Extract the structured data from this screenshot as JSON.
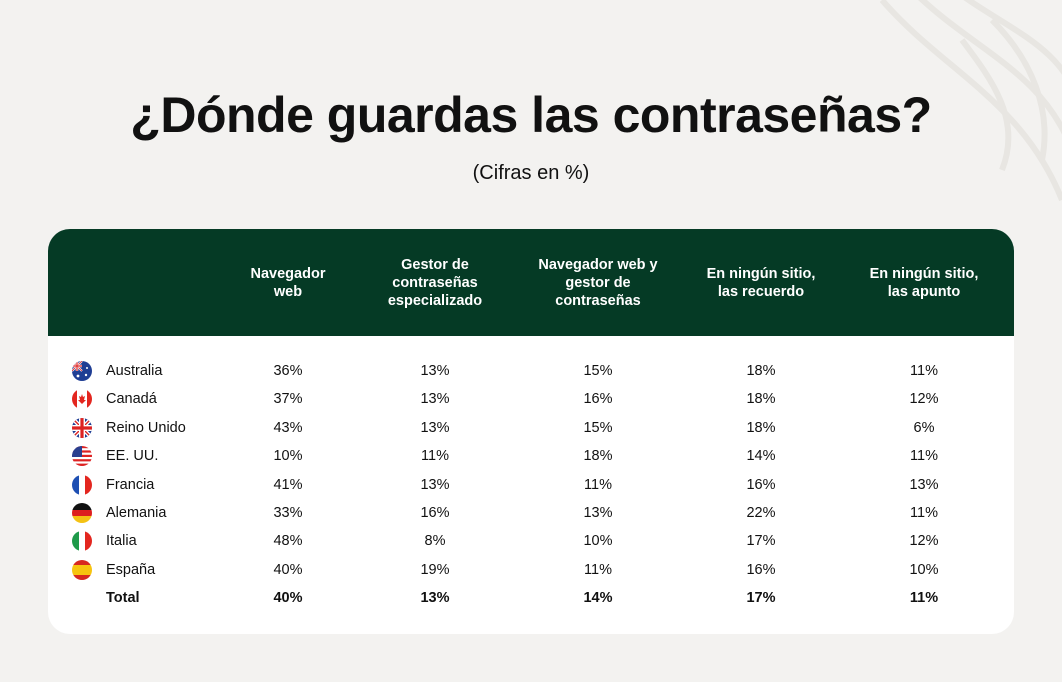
{
  "title": "¿Dónde guardas las contraseñas?",
  "subtitle": "(Cifras en %)",
  "columns": [
    "Navegador\nweb",
    "Gestor de\ncontraseñas\nespecializado",
    "Navegador web y\ngestor de\ncontraseñas",
    "En ningún sitio,\nlas recuerdo",
    "En ningún sitio,\nlas apunto"
  ],
  "rows": [
    {
      "country": "Australia",
      "flag": "australia-flag-icon",
      "values": [
        "36%",
        "13%",
        "15%",
        "18%",
        "11%"
      ]
    },
    {
      "country": "Canadá",
      "flag": "canada-flag-icon",
      "values": [
        "37%",
        "13%",
        "16%",
        "18%",
        "12%"
      ]
    },
    {
      "country": "Reino Unido",
      "flag": "uk-flag-icon",
      "values": [
        "43%",
        "13%",
        "15%",
        "18%",
        "6%"
      ]
    },
    {
      "country": "EE. UU.",
      "flag": "usa-flag-icon",
      "values": [
        "10%",
        "11%",
        "18%",
        "14%",
        "11%"
      ]
    },
    {
      "country": "Francia",
      "flag": "france-flag-icon",
      "values": [
        "41%",
        "13%",
        "11%",
        "16%",
        "13%"
      ]
    },
    {
      "country": "Alemania",
      "flag": "germany-flag-icon",
      "values": [
        "33%",
        "16%",
        "13%",
        "22%",
        "11%"
      ]
    },
    {
      "country": "Italia",
      "flag": "italy-flag-icon",
      "values": [
        "48%",
        "8%",
        "10%",
        "17%",
        "12%"
      ]
    },
    {
      "country": "España",
      "flag": "spain-flag-icon",
      "values": [
        "40%",
        "19%",
        "11%",
        "16%",
        "10%"
      ]
    }
  ],
  "total": {
    "label": "Total",
    "values": [
      "40%",
      "13%",
      "14%",
      "17%",
      "11%"
    ]
  },
  "colors": {
    "header_bg": "#053a25",
    "page_bg": "#f3f2f0",
    "card_bg": "#ffffff"
  },
  "chart_data": {
    "type": "table",
    "title": "¿Dónde guardas las contraseñas?",
    "subtitle": "(Cifras en %)",
    "categories": [
      "Australia",
      "Canadá",
      "Reino Unido",
      "EE. UU.",
      "Francia",
      "Alemania",
      "Italia",
      "España",
      "Total"
    ],
    "series": [
      {
        "name": "Navegador web",
        "values": [
          36,
          37,
          43,
          10,
          41,
          33,
          48,
          40,
          40
        ]
      },
      {
        "name": "Gestor de contraseñas especializado",
        "values": [
          13,
          13,
          13,
          11,
          13,
          16,
          8,
          19,
          13
        ]
      },
      {
        "name": "Navegador web y gestor de contraseñas",
        "values": [
          15,
          16,
          15,
          18,
          11,
          13,
          10,
          11,
          14
        ]
      },
      {
        "name": "En ningún sitio, las recuerdo",
        "values": [
          18,
          18,
          18,
          14,
          16,
          22,
          17,
          16,
          17
        ]
      },
      {
        "name": "En ningún sitio, las apunto",
        "values": [
          11,
          12,
          6,
          11,
          13,
          11,
          12,
          10,
          11
        ]
      }
    ]
  }
}
